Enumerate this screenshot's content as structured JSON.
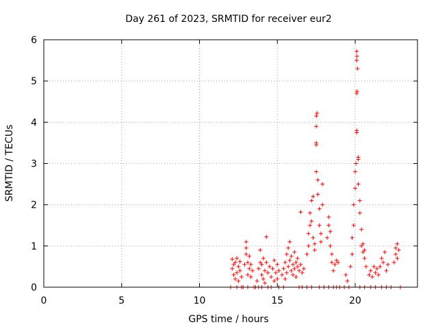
{
  "chart_data": {
    "type": "scatter",
    "title": "Day 261 of 2023, SRMTID for receiver eur2",
    "xlabel": "GPS time / hours",
    "ylabel": "SRMTID / TECUs",
    "xlim": [
      0,
      24
    ],
    "ylim": [
      0,
      6
    ],
    "xticks": [
      0,
      5,
      10,
      15,
      20
    ],
    "yticks": [
      0,
      1,
      2,
      3,
      4,
      5,
      6
    ],
    "grid": true,
    "marker": "+",
    "color": "#ff0000",
    "series": [
      {
        "name": "SRMTID",
        "points": [
          [
            12.0,
            0.0
          ],
          [
            12.1,
            0.68
          ],
          [
            12.1,
            0.45
          ],
          [
            12.2,
            0.3
          ],
          [
            12.2,
            0.55
          ],
          [
            12.3,
            0.6
          ],
          [
            12.3,
            0.2
          ],
          [
            12.4,
            0.35
          ],
          [
            12.4,
            0.7
          ],
          [
            12.5,
            0.15
          ],
          [
            12.5,
            0.5
          ],
          [
            12.6,
            0.4
          ],
          [
            12.6,
            0.62
          ],
          [
            12.7,
            0.25
          ],
          [
            12.8,
            0.0
          ],
          [
            12.9,
            0.55
          ],
          [
            13.0,
            0.8
          ],
          [
            13.0,
            1.1
          ],
          [
            13.0,
            0.95
          ],
          [
            13.1,
            0.6
          ],
          [
            13.1,
            0.3
          ],
          [
            13.2,
            0.45
          ],
          [
            13.2,
            0.75
          ],
          [
            13.3,
            0.55
          ],
          [
            13.3,
            0.25
          ],
          [
            13.4,
            0.4
          ],
          [
            13.5,
            0.0
          ],
          [
            13.7,
            0.15
          ],
          [
            13.8,
            0.45
          ],
          [
            13.9,
            0.6
          ],
          [
            13.9,
            0.9
          ],
          [
            14.0,
            0.3
          ],
          [
            14.0,
            0.55
          ],
          [
            14.1,
            0.2
          ],
          [
            14.1,
            0.7
          ],
          [
            14.2,
            0.4
          ],
          [
            14.2,
            0.1
          ],
          [
            14.3,
            1.22
          ],
          [
            14.3,
            0.6
          ],
          [
            14.4,
            0.35
          ],
          [
            14.5,
            0.5
          ],
          [
            14.6,
            0.25
          ],
          [
            14.7,
            0.45
          ],
          [
            14.8,
            0.65
          ],
          [
            14.8,
            0.15
          ],
          [
            14.9,
            0.35
          ],
          [
            15.0,
            0.55
          ],
          [
            15.0,
            0.2
          ],
          [
            15.1,
            0.4
          ],
          [
            15.3,
            0.3
          ],
          [
            15.4,
            0.45
          ],
          [
            15.5,
            0.2
          ],
          [
            15.5,
            0.6
          ],
          [
            15.6,
            0.8
          ],
          [
            15.6,
            0.35
          ],
          [
            15.7,
            0.5
          ],
          [
            15.7,
            0.95
          ],
          [
            15.8,
            0.65
          ],
          [
            15.8,
            1.1
          ],
          [
            15.9,
            0.4
          ],
          [
            15.9,
            0.75
          ],
          [
            16.0,
            0.3
          ],
          [
            16.0,
            0.55
          ],
          [
            16.1,
            0.85
          ],
          [
            16.1,
            0.45
          ],
          [
            16.2,
            0.6
          ],
          [
            16.2,
            0.25
          ],
          [
            16.3,
            0.5
          ],
          [
            16.3,
            0.7
          ],
          [
            16.4,
            0.4
          ],
          [
            16.5,
            0.55
          ],
          [
            16.5,
            1.82
          ],
          [
            16.6,
            0.35
          ],
          [
            16.7,
            0.45
          ],
          [
            16.9,
            0.8
          ],
          [
            17.0,
            1.0
          ],
          [
            17.0,
            1.3
          ],
          [
            17.1,
            1.5
          ],
          [
            17.1,
            1.8
          ],
          [
            17.2,
            2.1
          ],
          [
            17.2,
            1.6
          ],
          [
            17.3,
            2.2
          ],
          [
            17.3,
            1.2
          ],
          [
            17.4,
            1.05
          ],
          [
            17.4,
            0.9
          ],
          [
            17.5,
            3.5
          ],
          [
            17.5,
            3.45
          ],
          [
            17.5,
            3.9
          ],
          [
            17.5,
            4.15
          ],
          [
            17.55,
            4.22
          ],
          [
            17.5,
            2.8
          ],
          [
            17.6,
            2.6
          ],
          [
            17.6,
            2.25
          ],
          [
            17.7,
            1.9
          ],
          [
            17.7,
            1.5
          ],
          [
            17.8,
            1.3
          ],
          [
            17.8,
            1.1
          ],
          [
            17.9,
            2.5
          ],
          [
            17.9,
            2.0
          ],
          [
            18.2,
            1.2
          ],
          [
            18.3,
            1.5
          ],
          [
            18.3,
            1.7
          ],
          [
            18.4,
            1.35
          ],
          [
            18.4,
            1.0
          ],
          [
            18.5,
            0.8
          ],
          [
            18.5,
            0.6
          ],
          [
            18.6,
            0.4
          ],
          [
            18.7,
            0.55
          ],
          [
            18.8,
            0.65
          ],
          [
            18.9,
            0.6
          ],
          [
            19.0,
            0.0
          ],
          [
            19.3,
            0.0
          ],
          [
            19.4,
            0.3
          ],
          [
            19.5,
            0.15
          ],
          [
            19.7,
            0.5
          ],
          [
            19.8,
            0.8
          ],
          [
            19.8,
            1.2
          ],
          [
            19.9,
            1.5
          ],
          [
            19.9,
            2.0
          ],
          [
            20.0,
            2.4
          ],
          [
            20.0,
            2.8
          ],
          [
            20.05,
            3.0
          ],
          [
            20.1,
            3.8
          ],
          [
            20.1,
            3.75
          ],
          [
            20.1,
            4.7
          ],
          [
            20.12,
            4.75
          ],
          [
            20.1,
            5.5
          ],
          [
            20.12,
            5.6
          ],
          [
            20.1,
            5.72
          ],
          [
            20.15,
            5.3
          ],
          [
            20.2,
            3.15
          ],
          [
            20.2,
            3.1
          ],
          [
            20.2,
            2.5
          ],
          [
            20.3,
            2.1
          ],
          [
            20.3,
            1.8
          ],
          [
            20.4,
            1.4
          ],
          [
            20.4,
            1.0
          ],
          [
            20.5,
            0.85
          ],
          [
            20.5,
            1.05
          ],
          [
            20.6,
            0.7
          ],
          [
            20.6,
            0.9
          ],
          [
            20.7,
            0.5
          ],
          [
            20.9,
            0.3
          ],
          [
            21.0,
            0.4
          ],
          [
            21.1,
            0.25
          ],
          [
            21.2,
            0.5
          ],
          [
            21.3,
            0.35
          ],
          [
            21.4,
            0.45
          ],
          [
            21.5,
            0.3
          ],
          [
            21.6,
            0.5
          ],
          [
            21.7,
            0.7
          ],
          [
            21.8,
            0.6
          ],
          [
            21.9,
            0.85
          ],
          [
            22.0,
            0.4
          ],
          [
            22.1,
            0.55
          ],
          [
            22.5,
            0.6
          ],
          [
            22.6,
            0.8
          ],
          [
            22.6,
            0.95
          ],
          [
            22.7,
            1.05
          ],
          [
            22.7,
            0.7
          ],
          [
            22.8,
            0.9
          ],
          [
            12.4,
            0.0
          ],
          [
            12.7,
            0.0
          ],
          [
            13.1,
            0.0
          ],
          [
            13.6,
            0.0
          ],
          [
            13.8,
            0.0
          ],
          [
            14.0,
            0.0
          ],
          [
            14.4,
            0.0
          ],
          [
            14.6,
            0.0
          ],
          [
            15.1,
            0.0
          ],
          [
            15.4,
            0.0
          ],
          [
            16.4,
            0.0
          ],
          [
            16.6,
            0.0
          ],
          [
            16.9,
            0.0
          ],
          [
            17.2,
            0.0
          ],
          [
            17.7,
            0.0
          ],
          [
            18.0,
            0.0
          ],
          [
            18.3,
            0.0
          ],
          [
            18.6,
            0.0
          ],
          [
            18.8,
            0.0
          ],
          [
            19.6,
            0.0
          ],
          [
            20.3,
            0.0
          ],
          [
            20.6,
            0.0
          ],
          [
            21.0,
            0.0
          ],
          [
            21.3,
            0.0
          ],
          [
            21.7,
            0.0
          ],
          [
            22.0,
            0.0
          ],
          [
            22.3,
            0.0
          ],
          [
            22.9,
            0.0
          ]
        ]
      }
    ]
  }
}
